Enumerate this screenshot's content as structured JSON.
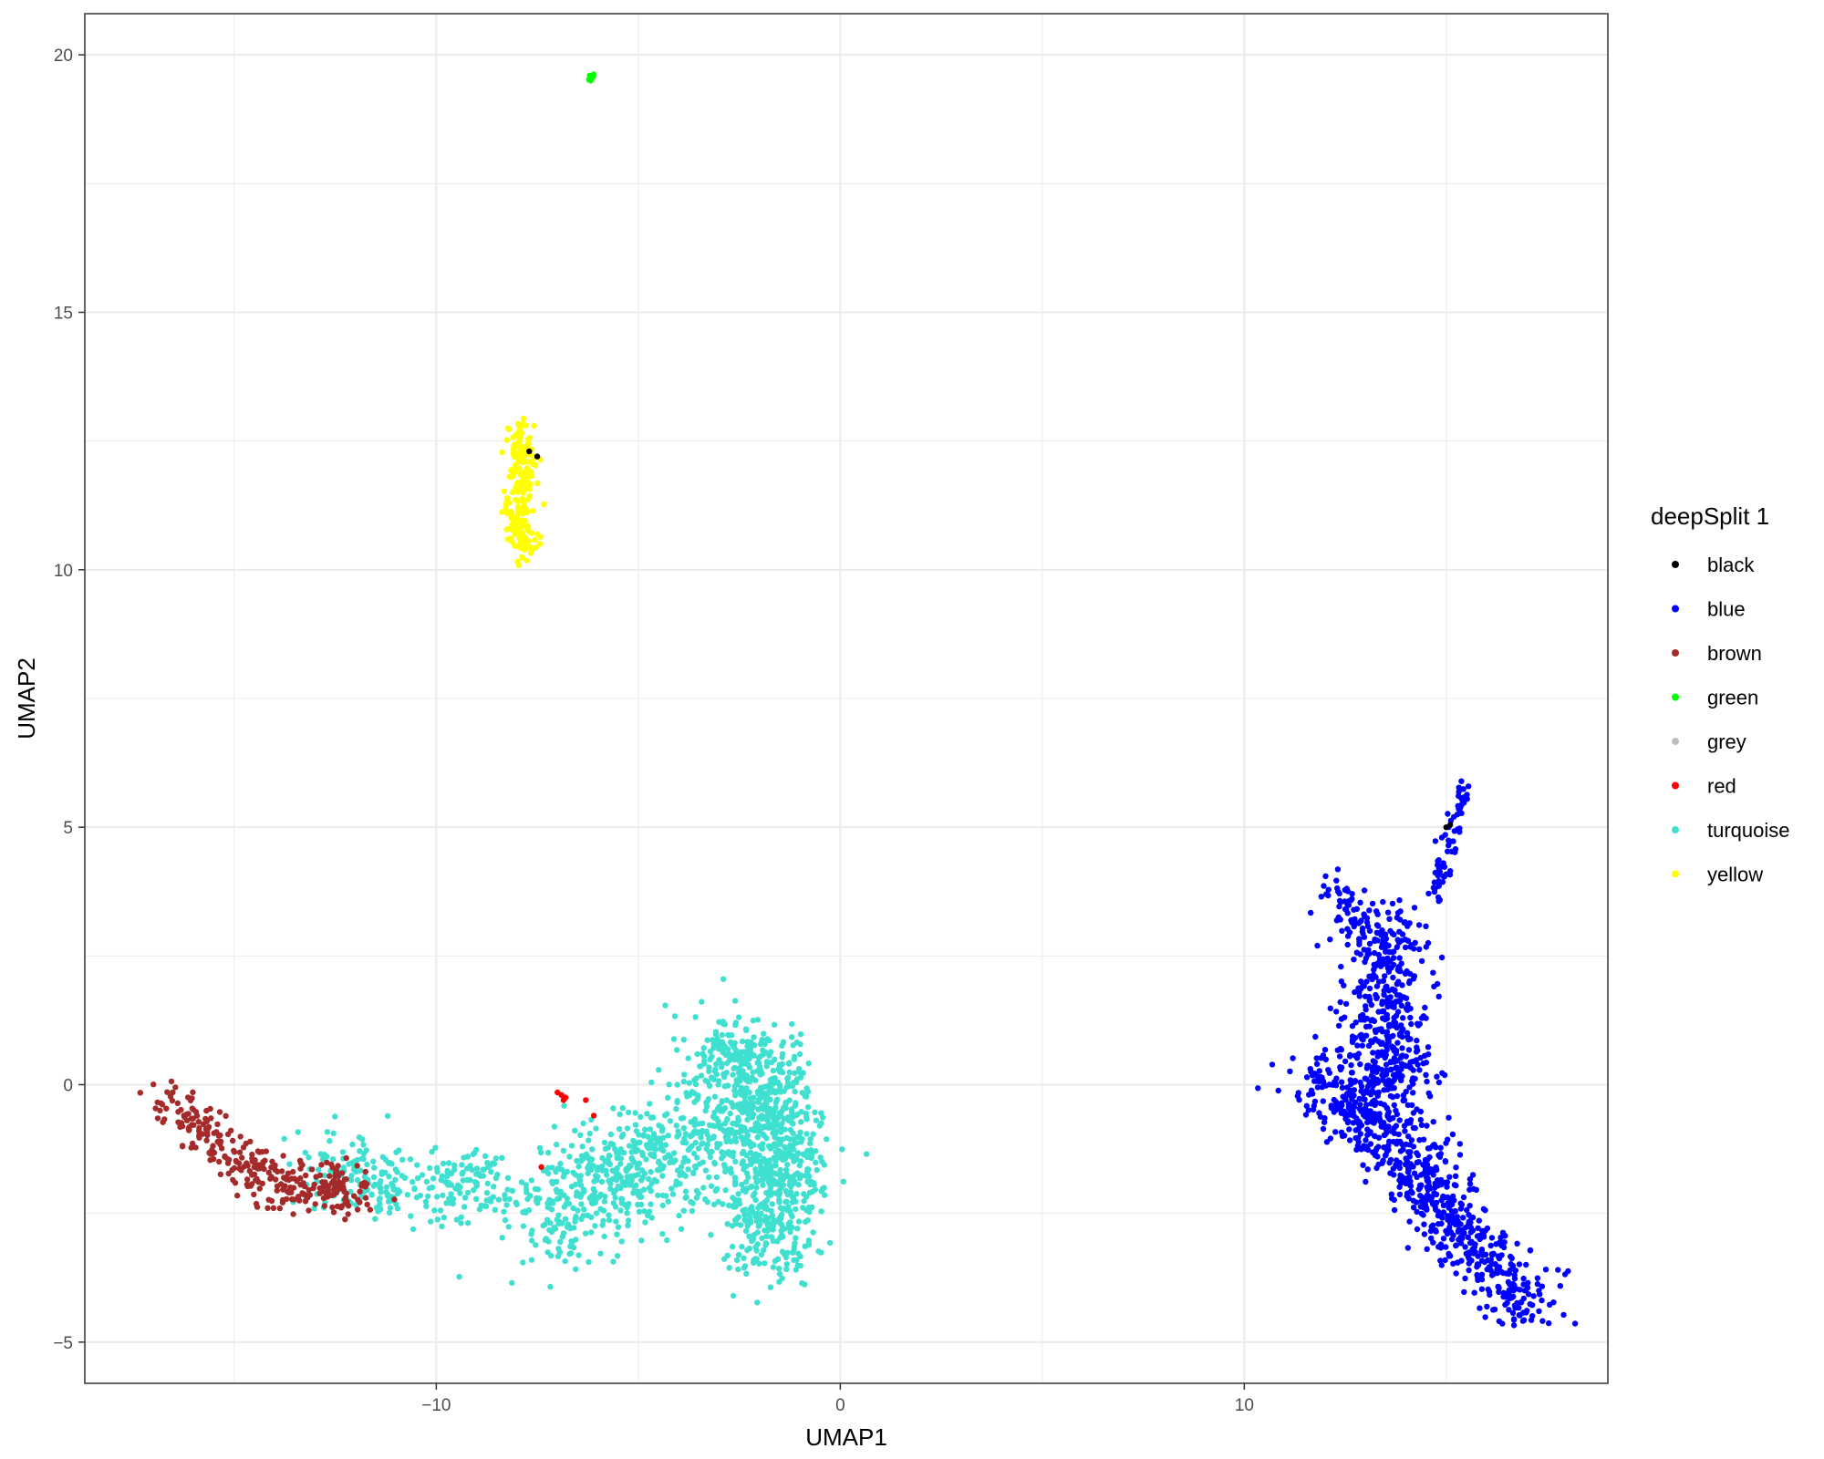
{
  "chart_data": {
    "type": "scatter",
    "title": "",
    "xlabel": "UMAP1",
    "ylabel": "UMAP2",
    "xlim": [
      -18.7,
      19.0
    ],
    "ylim": [
      -5.8,
      20.8
    ],
    "x_ticks": [
      -10,
      0,
      10
    ],
    "x_tick_labels": [
      "−10",
      "0",
      "10"
    ],
    "y_ticks": [
      -5,
      0,
      5,
      10,
      15,
      20
    ],
    "y_tick_labels": [
      "−5",
      "0",
      "5",
      "10",
      "15",
      "20"
    ],
    "grid": true,
    "legend_title": "deepSplit 1",
    "legend_position": "right",
    "series": [
      {
        "name": "black",
        "color": "#000000",
        "points": [
          [
            -7.7,
            12.3
          ],
          [
            -7.5,
            12.2
          ],
          [
            15.0,
            5.0
          ],
          [
            15.1,
            5.05
          ]
        ]
      },
      {
        "name": "blue",
        "color": "#0000ff",
        "clusters": [
          {
            "path": [
              [
                15.5,
                5.8
              ],
              [
                15.2,
                5.0
              ],
              [
                14.9,
                4.2
              ],
              [
                14.6,
                3.5
              ]
            ],
            "spread": 0.12,
            "n": 70
          },
          {
            "path": [
              [
                12.2,
                3.8
              ],
              [
                12.8,
                3.2
              ],
              [
                13.4,
                2.8
              ],
              [
                14.2,
                3.0
              ]
            ],
            "spread": 0.3,
            "n": 110
          },
          {
            "path": [
              [
                13.5,
                2.7
              ],
              [
                13.3,
                1.5
              ],
              [
                13.5,
                0.5
              ],
              [
                13.6,
                -0.3
              ]
            ],
            "spread": 0.55,
            "n": 420
          },
          {
            "path": [
              [
                11.7,
                0.1
              ],
              [
                12.6,
                -0.4
              ],
              [
                13.6,
                -1.0
              ],
              [
                14.4,
                -1.7
              ]
            ],
            "spread": 0.45,
            "n": 300
          },
          {
            "path": [
              [
                14.3,
                -1.5
              ],
              [
                14.9,
                -2.3
              ],
              [
                15.5,
                -3.0
              ],
              [
                16.4,
                -3.8
              ],
              [
                17.2,
                -4.5
              ]
            ],
            "spread": 0.42,
            "n": 400
          }
        ]
      },
      {
        "name": "brown",
        "color": "#a52a2a",
        "clusters": [
          {
            "path": [
              [
                -16.7,
                -0.4
              ],
              [
                -15.8,
                -0.9
              ],
              [
                -14.8,
                -1.5
              ],
              [
                -13.8,
                -2.0
              ],
              [
                -12.6,
                -2.0
              ],
              [
                -12.0,
                -2.1
              ]
            ],
            "spread": 0.33,
            "n": 300
          }
        ]
      },
      {
        "name": "green",
        "color": "#00ff00",
        "points": [
          [
            -6.2,
            19.6
          ],
          [
            -6.15,
            19.55
          ],
          [
            -6.1,
            19.62
          ],
          [
            -6.18,
            19.5
          ],
          [
            -6.12,
            19.58
          ],
          [
            -6.22,
            19.52
          ]
        ]
      },
      {
        "name": "grey",
        "color": "#bebebe",
        "points": []
      },
      {
        "name": "red",
        "color": "#ff0000",
        "points": [
          [
            -6.9,
            -0.2
          ],
          [
            -6.8,
            -0.25
          ],
          [
            -7.0,
            -0.15
          ],
          [
            -6.85,
            -0.3
          ],
          [
            -6.3,
            -0.3
          ],
          [
            -7.4,
            -1.6
          ],
          [
            -6.1,
            -0.6
          ]
        ]
      },
      {
        "name": "turquoise",
        "color": "#40e0d0",
        "clusters": [
          {
            "path": [
              [
                -13.0,
                -1.4
              ],
              [
                -12.0,
                -1.8
              ],
              [
                -11.0,
                -2.0
              ],
              [
                -9.5,
                -2.0
              ],
              [
                -8.5,
                -1.9
              ]
            ],
            "spread": 0.45,
            "n": 260
          },
          {
            "path": [
              [
                -7.5,
                -2.8
              ],
              [
                -6.0,
                -1.9
              ],
              [
                -4.5,
                -1.4
              ],
              [
                -3.0,
                -0.8
              ]
            ],
            "spread": 0.75,
            "n": 600
          },
          {
            "path": [
              [
                -2.8,
                0.8
              ],
              [
                -1.8,
                -0.5
              ],
              [
                -1.4,
                -1.8
              ],
              [
                -2.0,
                -3.1
              ]
            ],
            "spread": 0.6,
            "n": 900
          }
        ]
      },
      {
        "name": "yellow",
        "color": "#ffff00",
        "clusters": [
          {
            "path": [
              [
                -8.0,
                12.8
              ],
              [
                -7.8,
                12.3
              ],
              [
                -7.9,
                11.8
              ],
              [
                -8.0,
                11.2
              ],
              [
                -7.9,
                10.7
              ],
              [
                -7.8,
                10.3
              ]
            ],
            "spread": 0.17,
            "n": 220
          }
        ]
      }
    ]
  }
}
